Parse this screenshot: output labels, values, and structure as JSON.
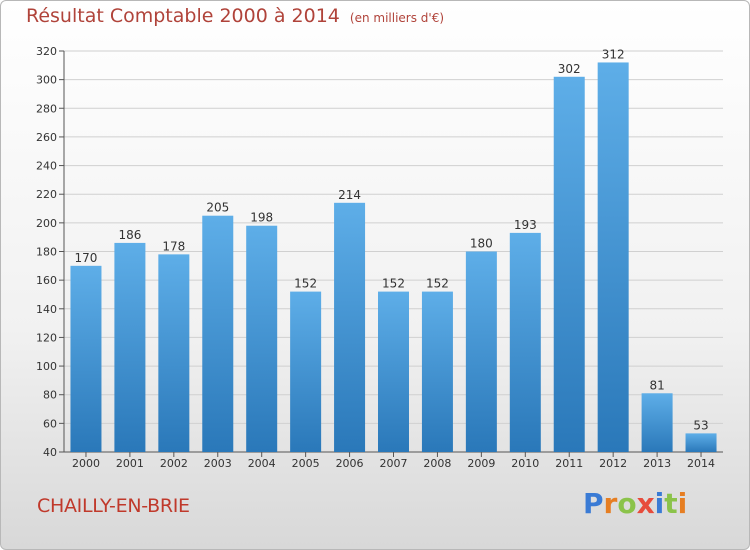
{
  "header": {
    "title": "Résultat Comptable 2000 à 2014",
    "subtitle": "(en milliers d'€)"
  },
  "footer": {
    "city": "CHAILLY-EN-BRIE",
    "logo_text": "Proxiti",
    "logo_colors": [
      "#3a7bd5",
      "#e67e22",
      "#8bc34a",
      "#e74c3c",
      "#3a7bd5",
      "#8bc34a",
      "#e67e22"
    ]
  },
  "colors": {
    "bar_light": "#5eaee8",
    "bar_dark": "#2a78b9",
    "title": "#b0433a",
    "grid": "#d0d0d0"
  },
  "chart_data": {
    "type": "bar",
    "categories": [
      "2000",
      "2001",
      "2002",
      "2003",
      "2004",
      "2005",
      "2006",
      "2007",
      "2008",
      "2009",
      "2010",
      "2011",
      "2012",
      "2013",
      "2014"
    ],
    "values": [
      170,
      186,
      178,
      205,
      198,
      152,
      214,
      152,
      152,
      180,
      193,
      302,
      312,
      81,
      53
    ],
    "ylim": [
      40,
      320
    ],
    "yticks": [
      40,
      60,
      80,
      100,
      120,
      140,
      160,
      180,
      200,
      220,
      240,
      260,
      280,
      300,
      320
    ],
    "grid": true,
    "legend": "none"
  }
}
